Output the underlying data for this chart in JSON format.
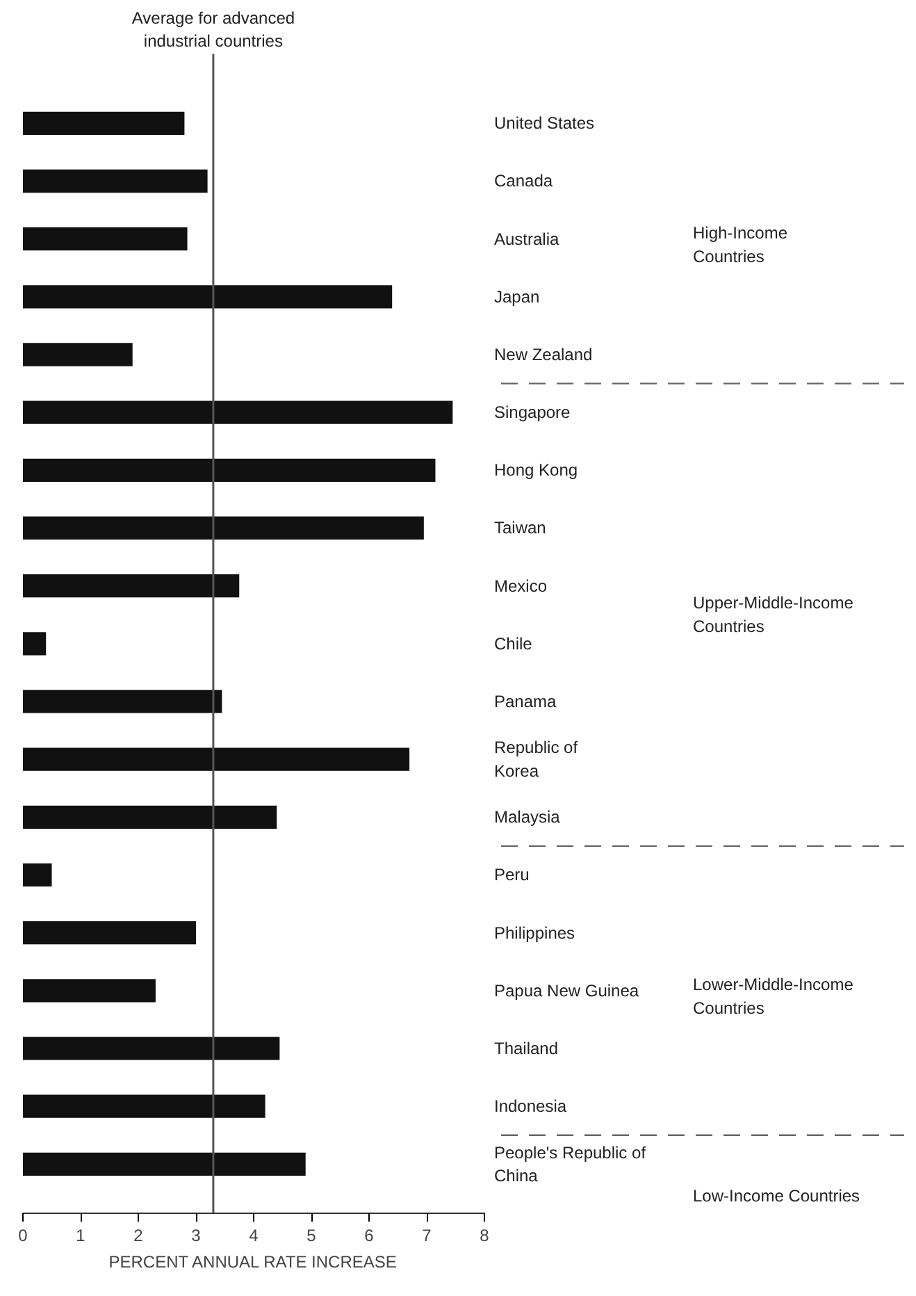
{
  "chart_data": {
    "type": "bar",
    "orientation": "horizontal",
    "xlabel": "PERCENT ANNUAL RATE INCREASE",
    "categories": [
      "United States",
      "Canada",
      "Australia",
      "Japan",
      "New Zealand",
      "Singapore",
      "Hong Kong",
      "Taiwan",
      "Mexico",
      "Chile",
      "Panama",
      "Republic of\nKorea",
      "Malaysia",
      "Peru",
      "Philippines",
      "Papua New Guinea",
      "Thailand",
      "Indonesia",
      "People's Republic of\nChina"
    ],
    "values": [
      2.8,
      3.2,
      2.85,
      6.4,
      1.9,
      7.45,
      7.15,
      6.95,
      3.75,
      0.4,
      3.45,
      6.7,
      4.4,
      0.5,
      3.0,
      2.3,
      4.45,
      4.2,
      4.9
    ],
    "color": "#111111",
    "xlim": [
      0,
      8
    ],
    "xticks": [
      0,
      1,
      2,
      3,
      4,
      5,
      6,
      7,
      8
    ],
    "grid": false,
    "ref_lines": [
      {
        "axis": "x",
        "value": 3.3,
        "label": "Average for advanced\nindustrial countries",
        "color": "#555555"
      }
    ],
    "annotations": [
      "High-Income\nCountries",
      "Upper-Middle-Income\nCountries",
      "Lower-Middle-Income\nCountries",
      "Low-Income Countries"
    ]
  }
}
